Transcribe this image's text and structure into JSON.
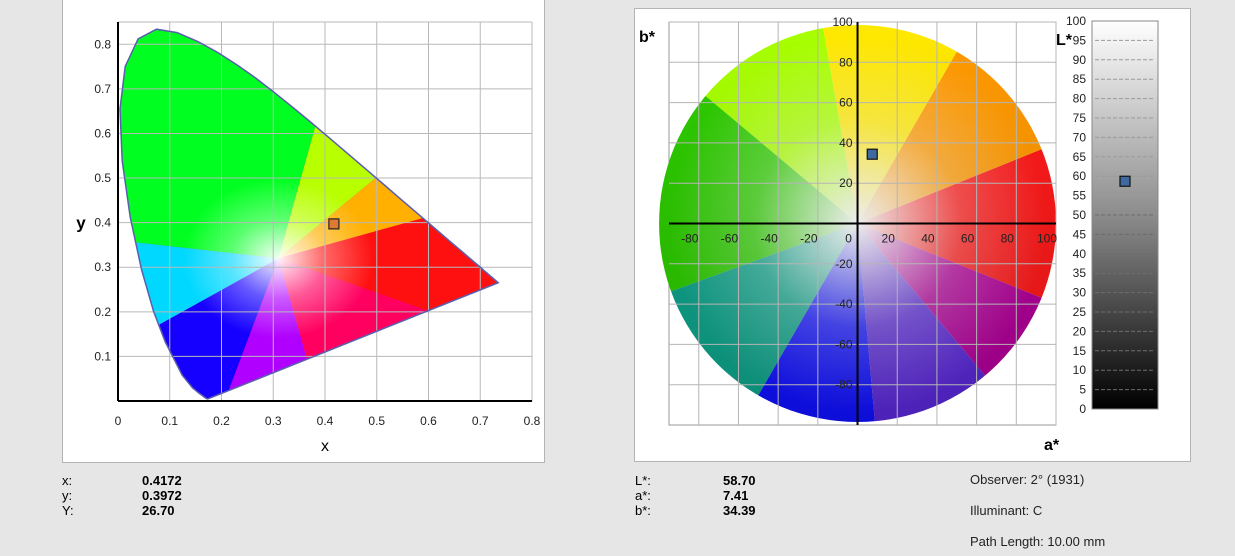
{
  "cie_chart": {
    "xlabel": "x",
    "ylabel": "y",
    "x_ticks": [
      "0",
      "0.1",
      "0.2",
      "0.3",
      "0.4",
      "0.5",
      "0.6",
      "0.7",
      "0.8"
    ],
    "y_ticks": [
      "0.1",
      "0.2",
      "0.3",
      "0.4",
      "0.5",
      "0.6",
      "0.7",
      "0.8"
    ]
  },
  "lab_chart": {
    "xlabel": "a*",
    "ylabel": "b*",
    "a_ticks": [
      "-80",
      "-60",
      "-40",
      "-20",
      "0",
      "20",
      "40",
      "60",
      "80",
      "100"
    ],
    "b_ticks": [
      "100",
      "80",
      "60",
      "40",
      "20",
      "-20",
      "-40",
      "-60",
      "-80"
    ]
  },
  "l_bar": {
    "label": "L*",
    "ticks": [
      "100",
      "95",
      "90",
      "85",
      "80",
      "75",
      "70",
      "65",
      "60",
      "55",
      "50",
      "45",
      "40",
      "35",
      "30",
      "25",
      "20",
      "15",
      "10",
      "5",
      "0"
    ]
  },
  "readouts": {
    "left": [
      {
        "label": "x:",
        "value": "0.4172"
      },
      {
        "label": "y:",
        "value": "0.3972"
      },
      {
        "label": "Y:",
        "value": "26.70"
      }
    ],
    "right": [
      {
        "label": "L*:",
        "value": "58.70"
      },
      {
        "label": "a*:",
        "value": "7.41"
      },
      {
        "label": "b*:",
        "value": "34.39"
      }
    ]
  },
  "info": {
    "observer": "Observer: 2° (1931)",
    "illuminant": "Illuminant: C",
    "path_length": "Path Length: 10.00 mm"
  },
  "chart_data": [
    {
      "type": "scatter",
      "xlabel": "x",
      "ylabel": "y",
      "xlim": [
        0,
        0.8
      ],
      "ylim": [
        0,
        0.85
      ],
      "grid": true,
      "series": [
        {
          "x": [
            0.4172
          ],
          "y": [
            0.3972
          ]
        }
      ],
      "marker_color": "#e07a30"
    },
    {
      "type": "scatter",
      "xlabel": "a*",
      "ylabel": "b*",
      "xlim": [
        -95,
        100
      ],
      "ylim": [
        -100,
        100
      ],
      "grid": true,
      "series": [
        {
          "x": [
            7.41
          ],
          "y": [
            34.39
          ]
        }
      ],
      "marker_color": "#3e6aa0"
    },
    {
      "type": "scatter",
      "ylabel": "L*",
      "ylim": [
        0,
        100
      ],
      "series": [
        {
          "y": [
            58.7
          ]
        }
      ],
      "marker_color": "#3e6aa0"
    }
  ]
}
